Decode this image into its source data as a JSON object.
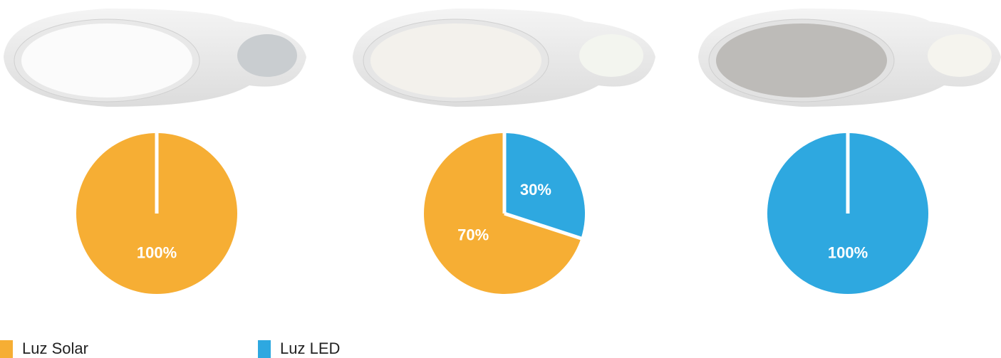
{
  "chart_data": {
    "type": "pie",
    "series": [
      {
        "name": "Luz Solar",
        "color": "#f6ae34",
        "values": [
          100,
          70,
          0
        ],
        "value_labels": [
          "100%",
          "70%",
          null
        ]
      },
      {
        "name": "Luz LED",
        "color": "#2ea8e0",
        "values": [
          0,
          30,
          100
        ],
        "value_labels": [
          null,
          "30%",
          "100%"
        ]
      }
    ]
  }
}
